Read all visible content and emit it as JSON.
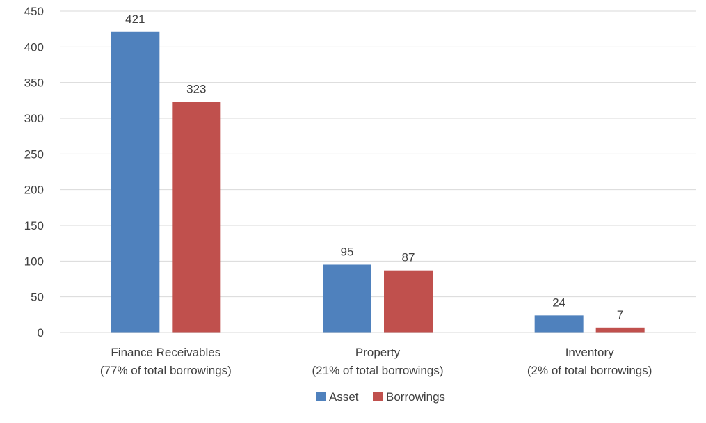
{
  "chart_data": {
    "type": "bar",
    "title": "",
    "xlabel": "",
    "ylabel": "",
    "categories": [
      [
        "Finance Receivables",
        "(77% of total borrowings)"
      ],
      [
        "Property",
        "(21% of total borrowings)"
      ],
      [
        "Inventory",
        "(2% of total borrowings)"
      ]
    ],
    "series": [
      {
        "name": "Asset",
        "color": "#4F81BD",
        "values": [
          421,
          95,
          24
        ]
      },
      {
        "name": "Borrowings",
        "color": "#C0504D",
        "values": [
          323,
          87,
          7
        ]
      }
    ],
    "ylim": [
      0,
      450
    ],
    "yticks": [
      0,
      50,
      100,
      150,
      200,
      250,
      300,
      350,
      400,
      450
    ],
    "grid": true,
    "legend_position": "bottom-center",
    "data_labels": true
  }
}
